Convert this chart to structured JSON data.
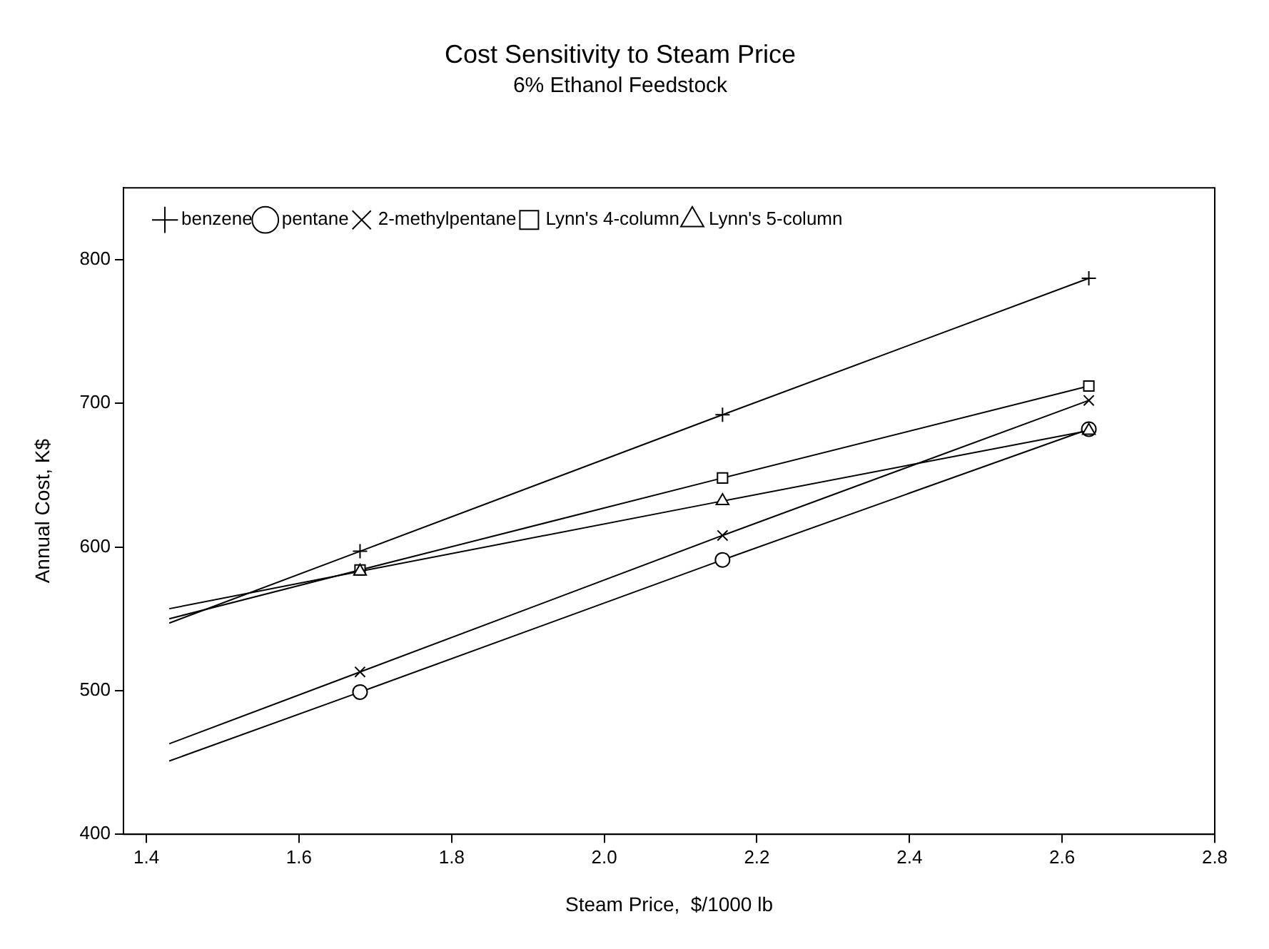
{
  "chart_data": {
    "type": "line",
    "title": "Cost Sensitivity to Steam Price",
    "subtitle": "6% Ethanol Feedstock",
    "xlabel": "Steam Price,  $/1000 lb",
    "ylabel": "Annual Cost, K$",
    "xlim": [
      1.37,
      2.8
    ],
    "xticks": [
      {
        "value": 1.4,
        "label": "1.4"
      },
      {
        "value": 1.6,
        "label": "1.6"
      },
      {
        "value": 1.8,
        "label": "1.8"
      },
      {
        "value": 2.0,
        "label": "2.0"
      },
      {
        "value": 2.2,
        "label": "2.2"
      },
      {
        "value": 2.4,
        "label": "2.4"
      },
      {
        "value": 2.6,
        "label": "2.6"
      },
      {
        "value": 2.8,
        "label": "2.8"
      }
    ],
    "ylim": [
      400,
      850
    ],
    "yticks": [
      400,
      500,
      600,
      700,
      800
    ],
    "grid": false,
    "legend": "top left",
    "line_style": "solid",
    "series": [
      {
        "name": "benzene",
        "color": "#000000",
        "marker": "cross",
        "x": [
          1.43,
          1.68,
          2.155,
          2.635
        ],
        "values": [
          547,
          597,
          692,
          787
        ]
      },
      {
        "name": "pentane",
        "color": "#000000",
        "marker": "circle",
        "x": [
          1.43,
          1.68,
          2.155,
          2.635
        ],
        "values": [
          451,
          499,
          591,
          682
        ]
      },
      {
        "name": "2-methylpentane",
        "color": "#000000",
        "marker": "x",
        "x": [
          1.43,
          1.68,
          2.155,
          2.635
        ],
        "values": [
          463,
          513,
          608,
          702
        ]
      },
      {
        "name": "Lynn's 4-column",
        "color": "#000000",
        "marker": "square",
        "x": [
          1.43,
          1.68,
          2.155,
          2.635
        ],
        "values": [
          550,
          584,
          648,
          712
        ]
      },
      {
        "name": "Lynn's 5-column",
        "color": "#000000",
        "marker": "triangle",
        "x": [
          1.43,
          1.68,
          2.155,
          2.635
        ],
        "values": [
          557,
          583,
          632,
          681
        ]
      }
    ]
  }
}
